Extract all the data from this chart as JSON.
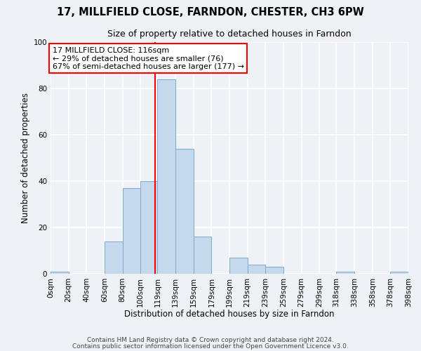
{
  "title": "17, MILLFIELD CLOSE, FARNDON, CHESTER, CH3 6PW",
  "subtitle": "Size of property relative to detached houses in Farndon",
  "xlabel": "Distribution of detached houses by size in Farndon",
  "ylabel": "Number of detached properties",
  "bin_edges": [
    0,
    20,
    40,
    60,
    80,
    100,
    119,
    139,
    159,
    179,
    199,
    219,
    239,
    259,
    279,
    299,
    318,
    338,
    358,
    378,
    398
  ],
  "counts": [
    1,
    0,
    0,
    14,
    37,
    40,
    84,
    54,
    16,
    0,
    7,
    4,
    3,
    0,
    0,
    0,
    1,
    0,
    0,
    1
  ],
  "bar_color": "#c5d8ec",
  "bar_edge_color": "#7aaacf",
  "vline_x": 116,
  "vline_color": "red",
  "annotation_line1": "17 MILLFIELD CLOSE: 116sqm",
  "annotation_line2": "← 29% of detached houses are smaller (76)",
  "annotation_line3": "67% of semi-detached houses are larger (177) →",
  "annotation_box_color": "white",
  "annotation_box_edge_color": "red",
  "ylim": [
    0,
    100
  ],
  "yticks": [
    0,
    20,
    40,
    60,
    80,
    100
  ],
  "tick_labels": [
    "0sqm",
    "20sqm",
    "40sqm",
    "60sqm",
    "80sqm",
    "100sqm",
    "119sqm",
    "139sqm",
    "159sqm",
    "179sqm",
    "199sqm",
    "219sqm",
    "239sqm",
    "259sqm",
    "279sqm",
    "299sqm",
    "318sqm",
    "338sqm",
    "358sqm",
    "378sqm",
    "398sqm"
  ],
  "footer_line1": "Contains HM Land Registry data © Crown copyright and database right 2024.",
  "footer_line2": "Contains public sector information licensed under the Open Government Licence v3.0.",
  "background_color": "#eef2f7",
  "grid_color": "white",
  "title_fontsize": 10.5,
  "subtitle_fontsize": 9,
  "axis_label_fontsize": 8.5,
  "tick_fontsize": 7.5,
  "annotation_fontsize": 8,
  "footer_fontsize": 6.5
}
